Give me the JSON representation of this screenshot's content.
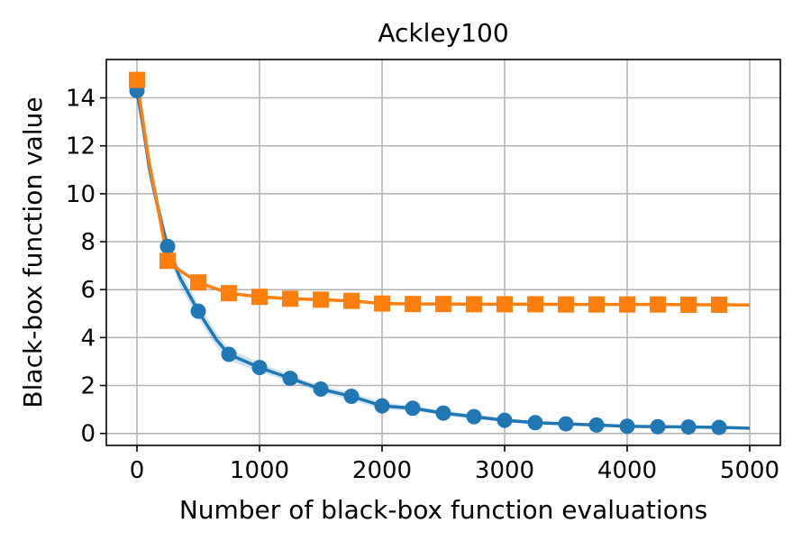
{
  "chart_data": {
    "type": "line",
    "title": "Ackley100",
    "xlabel": "Number of black-box function evaluations",
    "ylabel": "Black-box function value",
    "xlim": [
      -250,
      5250
    ],
    "ylim": [
      -0.5,
      15.6
    ],
    "xticks": [
      0,
      1000,
      2000,
      3000,
      4000,
      5000
    ],
    "yticks": [
      0,
      2,
      4,
      6,
      8,
      10,
      12,
      14
    ],
    "grid": true,
    "series": [
      {
        "color": "#1f77b4",
        "marker": "circle",
        "x": [
          0,
          250,
          500,
          750,
          1000,
          1250,
          1500,
          1750,
          2000,
          2250,
          2500,
          2750,
          3000,
          3250,
          3500,
          3750,
          4000,
          4250,
          4500,
          4750
        ],
        "values": [
          14.3,
          7.8,
          5.1,
          3.3,
          2.75,
          2.3,
          1.85,
          1.55,
          1.15,
          1.05,
          0.85,
          0.7,
          0.55,
          0.45,
          0.4,
          0.35,
          0.3,
          0.28,
          0.27,
          0.25
        ],
        "line": {
          "x": [
            0,
            50,
            100,
            150,
            200,
            250,
            350,
            500,
            650,
            750,
            1000,
            1250,
            1500,
            1750,
            2000,
            2250,
            2500,
            2750,
            3000,
            3250,
            3500,
            3750,
            4000,
            4250,
            4500,
            4750,
            5000
          ],
          "y": [
            14.3,
            12.8,
            11.1,
            9.9,
            8.8,
            7.8,
            6.5,
            5.1,
            3.9,
            3.3,
            2.75,
            2.3,
            1.85,
            1.55,
            1.15,
            1.05,
            0.85,
            0.7,
            0.55,
            0.45,
            0.4,
            0.35,
            0.3,
            0.28,
            0.27,
            0.25,
            0.22
          ]
        },
        "band": {
          "upper": [
            14.6,
            13.2,
            11.6,
            10.3,
            9.2,
            8.1,
            6.85,
            5.4,
            4.2,
            3.55,
            2.95,
            2.45,
            2.0,
            1.7,
            1.3,
            1.15,
            0.95,
            0.8,
            0.62,
            0.52,
            0.46,
            0.4,
            0.35,
            0.32,
            0.31,
            0.29,
            0.26
          ],
          "lower": [
            14.0,
            12.4,
            10.6,
            9.5,
            8.4,
            7.5,
            6.15,
            4.8,
            3.6,
            3.05,
            2.55,
            2.15,
            1.7,
            1.4,
            1.0,
            0.95,
            0.75,
            0.6,
            0.48,
            0.38,
            0.34,
            0.3,
            0.25,
            0.24,
            0.23,
            0.21,
            0.18
          ]
        }
      },
      {
        "color": "#ff7f0e",
        "marker": "square",
        "x": [
          0,
          250,
          500,
          750,
          1000,
          1250,
          1500,
          1750,
          2000,
          2250,
          2500,
          2750,
          3000,
          3250,
          3500,
          3750,
          4000,
          4250,
          4500,
          4750
        ],
        "values": [
          14.75,
          7.2,
          6.3,
          5.85,
          5.7,
          5.62,
          5.58,
          5.53,
          5.42,
          5.4,
          5.4,
          5.39,
          5.39,
          5.39,
          5.38,
          5.38,
          5.38,
          5.38,
          5.37,
          5.37
        ],
        "line": {
          "x": [
            0,
            50,
            100,
            150,
            200,
            250,
            350,
            500,
            750,
            1000,
            1250,
            1500,
            1750,
            2000,
            2250,
            2500,
            2750,
            3000,
            3250,
            3500,
            3750,
            4000,
            4250,
            4500,
            4750,
            5000
          ],
          "y": [
            14.75,
            13.0,
            11.3,
            10.0,
            8.6,
            7.2,
            6.8,
            6.3,
            5.85,
            5.7,
            5.62,
            5.58,
            5.53,
            5.42,
            5.4,
            5.4,
            5.39,
            5.39,
            5.39,
            5.38,
            5.38,
            5.38,
            5.38,
            5.37,
            5.37,
            5.36
          ]
        }
      }
    ]
  }
}
